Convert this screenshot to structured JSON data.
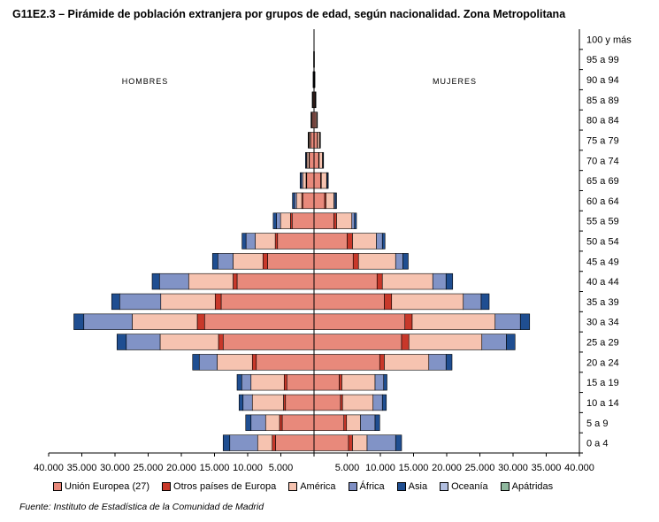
{
  "title": "G11E2.3 – Pirámide de población extranjera por grupos de edad, según nacionalidad. Zona Metropolitana",
  "source": "Fuente: Instituto de Estadística de la Comunidad de Madrid",
  "chart_data": {
    "type": "bar",
    "orientation": "horizontal-pyramid",
    "left_label": "HOMBRES",
    "right_label": "MUJERES",
    "categories": [
      "0 a 4",
      "5 a 9",
      "10 a 14",
      "15 a 19",
      "20 a 24",
      "25 a 29",
      "30 a 34",
      "35 a 39",
      "40 a 44",
      "45 a 49",
      "50 a 54",
      "55 a 59",
      "60 a 64",
      "65 a 69",
      "70 a 74",
      "75 a 79",
      "80 a 84",
      "85 a 89",
      "90 a 94",
      "95 a 99",
      "100 y más"
    ],
    "x_tick_labels": [
      "40.000",
      "35.000",
      "30.000",
      "25.000",
      "20.000",
      "15.000",
      "10.000",
      "5.000",
      "",
      "5.000",
      "10.000",
      "15.000",
      "20.000",
      "25.000",
      "30.000",
      "35.000",
      "40.000"
    ],
    "xlim": [
      -40000,
      40000
    ],
    "grid": false,
    "legend_position": "bottom",
    "series": [
      {
        "name": "Unión Europea (27)",
        "color": "#e8897b",
        "men": [
          5800,
          4800,
          4300,
          4100,
          8700,
          13700,
          16500,
          14000,
          11600,
          7000,
          5500,
          3300,
          1700,
          1100,
          700,
          500,
          250,
          150,
          70,
          30,
          10
        ],
        "women": [
          5200,
          4500,
          4000,
          3800,
          9900,
          13200,
          13700,
          10600,
          9500,
          5900,
          5000,
          3000,
          1600,
          1000,
          700,
          500,
          250,
          150,
          70,
          30,
          10
        ]
      },
      {
        "name": "Otros países de Europa",
        "color": "#c8382a",
        "men": [
          500,
          400,
          300,
          400,
          600,
          700,
          1100,
          900,
          600,
          700,
          350,
          250,
          150,
          100,
          70,
          50,
          30,
          20,
          10,
          5,
          0
        ],
        "women": [
          600,
          400,
          300,
          400,
          700,
          1100,
          1100,
          1100,
          800,
          800,
          800,
          400,
          200,
          100,
          80,
          60,
          40,
          20,
          10,
          5,
          0
        ]
      },
      {
        "name": "América",
        "color": "#f6c3b0",
        "men": [
          2200,
          2100,
          4700,
          5000,
          5300,
          8800,
          9800,
          8200,
          6700,
          4500,
          3000,
          1500,
          800,
          500,
          300,
          200,
          100,
          60,
          30,
          10,
          0
        ],
        "women": [
          2200,
          2100,
          4600,
          5000,
          6700,
          11000,
          12500,
          10800,
          7600,
          5600,
          3600,
          2300,
          1200,
          800,
          500,
          300,
          150,
          80,
          30,
          10,
          0
        ]
      },
      {
        "name": "África",
        "color": "#8193c6",
        "men": [
          4200,
          2200,
          1400,
          1400,
          2700,
          5100,
          7300,
          6200,
          4400,
          2300,
          1400,
          600,
          300,
          200,
          100,
          60,
          30,
          10,
          5,
          0,
          0
        ],
        "women": [
          4300,
          2200,
          1400,
          1300,
          2600,
          3700,
          3800,
          2700,
          2000,
          1100,
          900,
          400,
          200,
          100,
          60,
          40,
          20,
          10,
          5,
          0,
          0
        ],
        "legend_color": "#7f8fc4"
      },
      {
        "name": "Asia",
        "color": "#1f4e91",
        "men": [
          1000,
          800,
          600,
          700,
          1000,
          1400,
          1500,
          1200,
          1100,
          800,
          600,
          500,
          300,
          200,
          120,
          80,
          50,
          30,
          20,
          10,
          5
        ],
        "women": [
          900,
          700,
          600,
          500,
          900,
          1300,
          1400,
          1200,
          1000,
          800,
          400,
          300,
          200,
          150,
          100,
          70,
          50,
          30,
          20,
          10,
          5
        ]
      },
      {
        "name": "Oceanía",
        "color": "#b2bfe0",
        "men": [
          0,
          0,
          0,
          0,
          0,
          0,
          0,
          0,
          0,
          0,
          0,
          0,
          0,
          0,
          0,
          0,
          0,
          0,
          0,
          0,
          0
        ],
        "women": [
          0,
          0,
          0,
          0,
          0,
          0,
          0,
          0,
          0,
          0,
          0,
          0,
          0,
          0,
          0,
          0,
          0,
          0,
          0,
          0,
          0
        ]
      },
      {
        "name": "Apátridas",
        "color": "#8fb89e",
        "men": [
          0,
          0,
          0,
          0,
          0,
          0,
          0,
          0,
          0,
          0,
          0,
          0,
          0,
          0,
          0,
          0,
          0,
          0,
          0,
          0,
          0
        ],
        "women": [
          0,
          0,
          0,
          0,
          0,
          0,
          0,
          0,
          0,
          0,
          0,
          0,
          0,
          0,
          0,
          0,
          0,
          0,
          0,
          0,
          0
        ]
      }
    ]
  }
}
